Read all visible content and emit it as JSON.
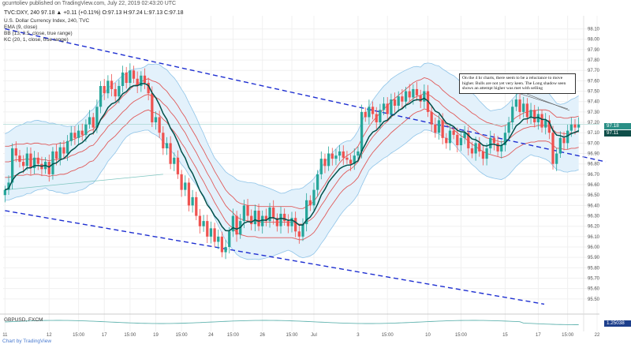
{
  "header": {
    "text": "gcurrtoliev published on TradingView.com, July 22, 2019 02:43:20 UTC"
  },
  "symbol_line": {
    "text": "TVC:DXY, 240  97.18  ▲ +0.11 (+0.11%)  O:97.13 H:97.24 L:97.13 C:97.18"
  },
  "legend": {
    "line1": "U.S. Dollar Currency Index, 240, TVC",
    "line2": "EMA (9, close)",
    "line3": "BB (13, 2.5, close, true range)",
    "line4": "KC (20, 1, close, true range)"
  },
  "annotation": {
    "text": "On the 4 hr charts, there seem to be a reluctance to move higher. Bulls are not yet very keen. The Long shadow seen shows an attempt higher was met with selling"
  },
  "sub_pane": {
    "label": "GBPUSD, FXCM",
    "value_tag": "1.25038"
  },
  "footer": {
    "text": "Chart by TradingView"
  },
  "colors": {
    "up": "#26a69a",
    "down": "#ef5350",
    "ema": "#00504a",
    "kc": "#e05a5a",
    "bb": "#8fc4e8",
    "bb_fill": "#e3f1fb",
    "channel": "#1e2fd1",
    "price_tag": "#2a8f86",
    "ema_tag": "#0f4e49"
  },
  "chart_data": {
    "type": "candlestick",
    "ylim": [
      95.4,
      98.15
    ],
    "y_ticks": [
      "98.10",
      "98.00",
      "97.90",
      "97.80",
      "97.70",
      "97.60",
      "97.50",
      "97.40",
      "97.30",
      "97.20",
      "97.10",
      "97.00",
      "96.90",
      "96.80",
      "96.70",
      "96.60",
      "96.50",
      "96.40",
      "96.30",
      "96.20",
      "96.10",
      "96.00",
      "95.90",
      "95.80",
      "95.70",
      "95.60",
      "95.50"
    ],
    "y_tick_values": [
      98.1,
      98.0,
      97.9,
      97.8,
      97.7,
      97.6,
      97.5,
      97.4,
      97.3,
      97.2,
      97.1,
      97.0,
      96.9,
      96.8,
      96.7,
      96.6,
      96.5,
      96.4,
      96.3,
      96.2,
      96.1,
      96.0,
      95.9,
      95.8,
      95.7,
      95.6,
      95.5
    ],
    "x_ticks": [
      {
        "label": "11",
        "bar": 0
      },
      {
        "label": "12",
        "bar": 12
      },
      {
        "label": "15:00",
        "bar": 20
      },
      {
        "label": "17",
        "bar": 27
      },
      {
        "label": "15:00",
        "bar": 34
      },
      {
        "label": "19",
        "bar": 41
      },
      {
        "label": "15:00",
        "bar": 48
      },
      {
        "label": "24",
        "bar": 56
      },
      {
        "label": "15:00",
        "bar": 62
      },
      {
        "label": "26",
        "bar": 70
      },
      {
        "label": "15:00",
        "bar": 78
      },
      {
        "label": "Jul",
        "bar": 84
      },
      {
        "label": "3",
        "bar": 96
      },
      {
        "label": "15:00",
        "bar": 104
      },
      {
        "label": "10",
        "bar": 115
      },
      {
        "label": "15:00",
        "bar": 124
      },
      {
        "label": "15",
        "bar": 136
      },
      {
        "label": "17",
        "bar": 145
      },
      {
        "label": "15:00",
        "bar": 153
      },
      {
        "label": "22",
        "bar": 161
      }
    ],
    "closes": [
      96.55,
      96.62,
      96.95,
      96.88,
      96.82,
      96.78,
      96.9,
      96.76,
      96.86,
      96.8,
      96.75,
      96.82,
      96.7,
      96.92,
      96.85,
      96.96,
      96.9,
      97.02,
      97.1,
      97.05,
      97.12,
      97.08,
      97.18,
      97.25,
      97.15,
      97.35,
      97.55,
      97.48,
      97.6,
      97.52,
      97.45,
      97.55,
      97.68,
      97.58,
      97.7,
      97.62,
      97.55,
      97.65,
      97.58,
      97.48,
      97.2,
      97.25,
      97.1,
      96.95,
      97.0,
      96.8,
      96.86,
      96.7,
      96.55,
      96.62,
      96.4,
      96.48,
      96.3,
      96.2,
      96.25,
      96.1,
      96.18,
      96.05,
      96.1,
      95.95,
      96.0,
      96.15,
      96.3,
      96.12,
      96.25,
      96.4,
      96.3,
      96.22,
      96.35,
      96.2,
      96.3,
      96.25,
      96.38,
      96.28,
      96.2,
      96.32,
      96.25,
      96.2,
      96.28,
      96.15,
      96.1,
      96.22,
      96.45,
      96.4,
      96.55,
      96.7,
      96.85,
      96.78,
      96.9,
      96.85,
      96.88,
      96.92,
      96.86,
      96.84,
      96.8,
      96.88,
      96.92,
      97.3,
      97.25,
      97.35,
      97.28,
      97.2,
      97.32,
      97.38,
      97.28,
      97.42,
      97.36,
      97.45,
      97.4,
      97.5,
      97.44,
      97.52,
      97.46,
      97.4,
      97.5,
      97.3,
      97.18,
      97.1,
      97.22,
      97.05,
      97.0,
      97.12,
      97.08,
      96.98,
      97.05,
      97.1,
      96.95,
      96.9,
      97.0,
      96.92,
      96.85,
      96.95,
      97.05,
      97.0,
      96.92,
      96.98,
      97.1,
      97.2,
      97.35,
      97.42,
      97.3,
      97.38,
      97.25,
      97.32,
      97.2,
      97.28,
      97.15,
      97.22,
      97.1,
      96.8,
      96.9,
      97.05,
      97.0,
      97.12,
      97.18,
      97.15,
      97.18
    ],
    "kc_center": [
      96.82,
      96.82,
      96.83,
      96.84,
      96.84,
      96.84,
      96.85,
      96.84,
      96.85,
      96.85,
      96.84,
      96.84,
      96.83,
      96.84,
      96.84,
      96.85,
      96.85,
      96.86,
      96.88,
      96.89,
      96.91,
      96.92,
      96.94,
      96.97,
      96.98,
      97.02,
      97.07,
      97.11,
      97.16,
      97.19,
      97.22,
      97.26,
      97.3,
      97.33,
      97.37,
      97.4,
      97.42,
      97.44,
      97.46,
      97.47,
      97.45,
      97.44,
      97.42,
      97.38,
      97.35,
      97.3,
      97.26,
      97.21,
      97.15,
      97.1,
      97.03,
      96.97,
      96.91,
      96.84,
      96.78,
      96.71,
      96.65,
      96.58,
      96.52,
      96.46,
      96.4,
      96.36,
      96.33,
      96.29,
      96.27,
      96.26,
      96.25,
      96.25,
      96.25,
      96.24,
      96.24,
      96.24,
      96.24,
      96.24,
      96.24,
      96.24,
      96.24,
      96.24,
      96.24,
      96.23,
      96.22,
      96.22,
      96.24,
      96.26,
      96.29,
      96.34,
      96.4,
      96.45,
      96.51,
      96.56,
      96.61,
      96.66,
      96.7,
      96.73,
      96.75,
      96.78,
      96.82,
      96.89,
      96.95,
      97.01,
      97.06,
      97.1,
      97.14,
      97.18,
      97.21,
      97.25,
      97.28,
      97.31,
      97.34,
      97.37,
      97.4,
      97.43,
      97.45,
      97.46,
      97.48,
      97.47,
      97.45,
      97.42,
      97.4,
      97.36,
      97.33,
      97.3,
      97.28,
      97.25,
      97.22,
      97.2,
      97.17,
      97.14,
      97.12,
      97.09,
      97.07,
      97.05,
      97.04,
      97.03,
      97.02,
      97.01,
      97.02,
      97.04,
      97.07,
      97.1,
      97.12,
      97.14,
      97.15,
      97.16,
      97.16,
      97.17,
      97.17,
      97.17,
      97.16,
      97.13,
      97.1,
      97.1,
      97.09,
      97.09,
      97.1,
      97.1,
      97.11
    ],
    "kc_upper": [
      96.97,
      96.97,
      96.98,
      96.99,
      96.99,
      96.99,
      97.0,
      96.99,
      97.0,
      97.0,
      96.99,
      96.99,
      96.98,
      96.99,
      96.99,
      97.0,
      97.0,
      97.01,
      97.03,
      97.04,
      97.06,
      97.07,
      97.09,
      97.12,
      97.13,
      97.17,
      97.22,
      97.26,
      97.31,
      97.34,
      97.37,
      97.41,
      97.45,
      97.48,
      97.52,
      97.55,
      97.57,
      97.59,
      97.61,
      97.62,
      97.6,
      97.59,
      97.57,
      97.53,
      97.5,
      97.45,
      97.41,
      97.36,
      97.3,
      97.25,
      97.18,
      97.12,
      97.06,
      96.99,
      96.93,
      96.86,
      96.8,
      96.73,
      96.67,
      96.61,
      96.55,
      96.51,
      96.48,
      96.44,
      96.42,
      96.41,
      96.4,
      96.4,
      96.4,
      96.39,
      96.39,
      96.39,
      96.39,
      96.39,
      96.39,
      96.39,
      96.39,
      96.39,
      96.39,
      96.38,
      96.37,
      96.37,
      96.39,
      96.41,
      96.44,
      96.49,
      96.55,
      96.6,
      96.66,
      96.71,
      96.76,
      96.81,
      96.85,
      96.88,
      96.9,
      96.93,
      96.97,
      97.04,
      97.1,
      97.16,
      97.21,
      97.25,
      97.29,
      97.33,
      97.36,
      97.4,
      97.43,
      97.46,
      97.49,
      97.52,
      97.55,
      97.58,
      97.6,
      97.61,
      97.63,
      97.62,
      97.6,
      97.57,
      97.55,
      97.51,
      97.48,
      97.45,
      97.43,
      97.4,
      97.37,
      97.35,
      97.32,
      97.29,
      97.27,
      97.24,
      97.22,
      97.2,
      97.19,
      97.18,
      97.17,
      97.16,
      97.17,
      97.19,
      97.22,
      97.25,
      97.27,
      97.29,
      97.3,
      97.31,
      97.31,
      97.32,
      97.32,
      97.32,
      97.31,
      97.28,
      97.25,
      97.25,
      97.24,
      97.24,
      97.25,
      97.25,
      97.26
    ],
    "kc_lower": [
      96.67,
      96.67,
      96.68,
      96.69,
      96.69,
      96.69,
      96.7,
      96.69,
      96.7,
      96.7,
      96.69,
      96.69,
      96.68,
      96.69,
      96.69,
      96.7,
      96.7,
      96.71,
      96.73,
      96.74,
      96.76,
      96.77,
      96.79,
      96.82,
      96.83,
      96.87,
      96.92,
      96.96,
      97.01,
      97.04,
      97.07,
      97.11,
      97.15,
      97.18,
      97.22,
      97.25,
      97.27,
      97.29,
      97.31,
      97.32,
      97.3,
      97.29,
      97.27,
      97.23,
      97.2,
      97.15,
      97.11,
      97.06,
      97.0,
      96.95,
      96.88,
      96.82,
      96.76,
      96.69,
      96.63,
      96.56,
      96.5,
      96.43,
      96.37,
      96.31,
      96.25,
      96.21,
      96.18,
      96.14,
      96.12,
      96.11,
      96.1,
      96.1,
      96.1,
      96.09,
      96.09,
      96.09,
      96.09,
      96.09,
      96.09,
      96.09,
      96.09,
      96.09,
      96.09,
      96.08,
      96.07,
      96.07,
      96.09,
      96.11,
      96.14,
      96.19,
      96.25,
      96.3,
      96.36,
      96.41,
      96.46,
      96.51,
      96.55,
      96.58,
      96.6,
      96.63,
      96.67,
      96.74,
      96.8,
      96.86,
      96.91,
      96.95,
      96.99,
      97.03,
      97.06,
      97.1,
      97.13,
      97.16,
      97.19,
      97.22,
      97.25,
      97.28,
      97.3,
      97.31,
      97.33,
      97.32,
      97.3,
      97.27,
      97.25,
      97.21,
      97.18,
      97.15,
      97.13,
      97.1,
      97.07,
      97.05,
      97.02,
      96.99,
      96.97,
      96.94,
      96.92,
      96.9,
      96.89,
      96.88,
      96.87,
      96.86,
      96.87,
      96.89,
      96.92,
      96.95,
      96.97,
      96.99,
      97.0,
      97.01,
      97.01,
      97.02,
      97.02,
      97.02,
      97.01,
      96.98,
      96.95,
      96.95,
      96.94,
      96.94,
      96.95,
      96.95,
      96.96
    ],
    "channel_upper": {
      "x": [
        0,
        163
      ],
      "y": [
        98.1,
        96.82
      ]
    },
    "channel_lower": {
      "x": [
        0,
        163
      ],
      "y": [
        96.35,
        95.45
      ]
    },
    "support_line": {
      "x": [
        0,
        43
      ],
      "y": [
        96.55,
        96.7
      ]
    },
    "price_tag": "97.18",
    "ema_tag": "97.11",
    "sub_ticks": [
      "1.25038"
    ]
  }
}
